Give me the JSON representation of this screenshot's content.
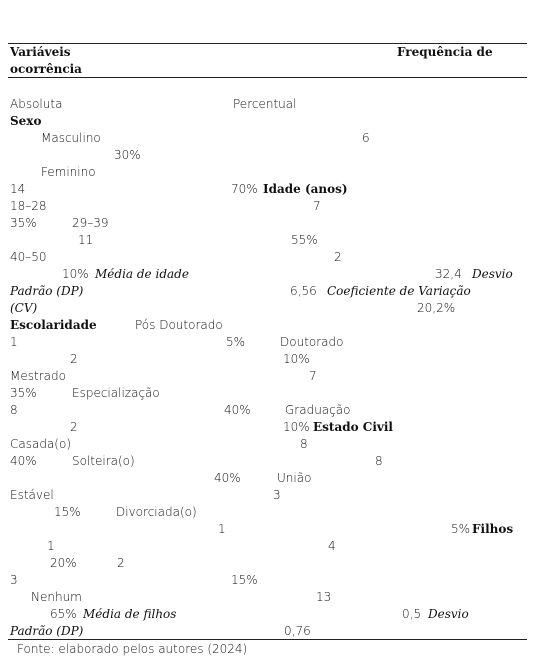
{
  "header": {
    "left": "Variáveis",
    "left2": "ocorrência",
    "right": "Frequência de"
  },
  "lines": [
    [
      {
        "text": "Absoluta"
      },
      {
        "text": "Percentual"
      }
    ],
    [
      {
        "text": "Sexo",
        "style": "bold"
      }
    ],
    [
      {
        "text": "Masculino"
      },
      {
        "text": "6"
      }
    ],
    [
      {
        "text": "30%"
      }
    ],
    [
      {
        "text": "Feminino"
      }
    ],
    [
      {
        "text": "14"
      },
      {
        "text": "70%"
      },
      {
        "text": "Idade (anos)",
        "style": "bold"
      }
    ],
    [
      {
        "text": "18–28"
      },
      {
        "text": "7"
      }
    ],
    [
      {
        "text": "35%"
      },
      {
        "text": "29–39"
      }
    ],
    [
      {
        "text": "11"
      },
      {
        "text": "55%"
      }
    ],
    [
      {
        "text": "40–50"
      },
      {
        "text": "2"
      }
    ],
    [
      {
        "text": "10%"
      },
      {
        "text": "Média de idade",
        "style": "italic"
      },
      {
        "text": "32,4"
      },
      {
        "text": "Desvio",
        "style": "italic"
      }
    ],
    [
      {
        "text": "Padrão (DP)",
        "style": "italic"
      },
      {
        "text": "6,56"
      },
      {
        "text": "Coeficiente de Variação",
        "style": "italic"
      }
    ],
    [
      {
        "text": "(CV)",
        "style": "italic"
      },
      {
        "text": "20,2%"
      }
    ],
    [
      {
        "text": "Escolaridade",
        "style": "bold"
      },
      {
        "text": "Pós Doutorado"
      }
    ],
    [
      {
        "text": "1"
      },
      {
        "text": "5%"
      },
      {
        "text": "Doutorado"
      }
    ],
    [
      {
        "text": "2"
      },
      {
        "text": "10%"
      }
    ],
    [
      {
        "text": "Mestrado"
      },
      {
        "text": "7"
      }
    ],
    [
      {
        "text": "35%"
      },
      {
        "text": "Especialização"
      }
    ],
    [
      {
        "text": "8"
      },
      {
        "text": "40%"
      },
      {
        "text": "Graduação"
      }
    ],
    [
      {
        "text": "2"
      },
      {
        "text": "10%"
      },
      {
        "text": "Estado Civil",
        "style": "bold"
      }
    ],
    [
      {
        "text": "Casada(o)"
      },
      {
        "text": "8"
      }
    ],
    [
      {
        "text": "40%"
      },
      {
        "text": "Solteira(o)"
      },
      {
        "text": "8"
      }
    ],
    [
      {
        "text": "40%"
      },
      {
        "text": "União"
      }
    ],
    [
      {
        "text": "Estável"
      },
      {
        "text": "3"
      }
    ],
    [
      {
        "text": "15%"
      },
      {
        "text": "Divorciada(o)"
      }
    ],
    [
      {
        "text": "1"
      },
      {
        "text": "5%"
      },
      {
        "text": "Filhos",
        "style": "bold"
      }
    ],
    [
      {
        "text": "1"
      },
      {
        "text": "4"
      }
    ],
    [
      {
        "text": "20%"
      },
      {
        "text": "2"
      }
    ],
    [
      {
        "text": "3"
      },
      {
        "text": "15%"
      }
    ],
    [
      {
        "text": "Nenhum"
      },
      {
        "text": "13"
      }
    ],
    [
      {
        "text": "65%"
      },
      {
        "text": "Média de filhos",
        "style": "italic"
      },
      {
        "text": "0,5"
      },
      {
        "text": "Desvio",
        "style": "italic"
      }
    ],
    [
      {
        "text": "Padrão (DP)",
        "style": "italic"
      },
      {
        "text": "0,76"
      }
    ]
  ],
  "source": "Fonte: elaborado pelos autores (2024)"
}
